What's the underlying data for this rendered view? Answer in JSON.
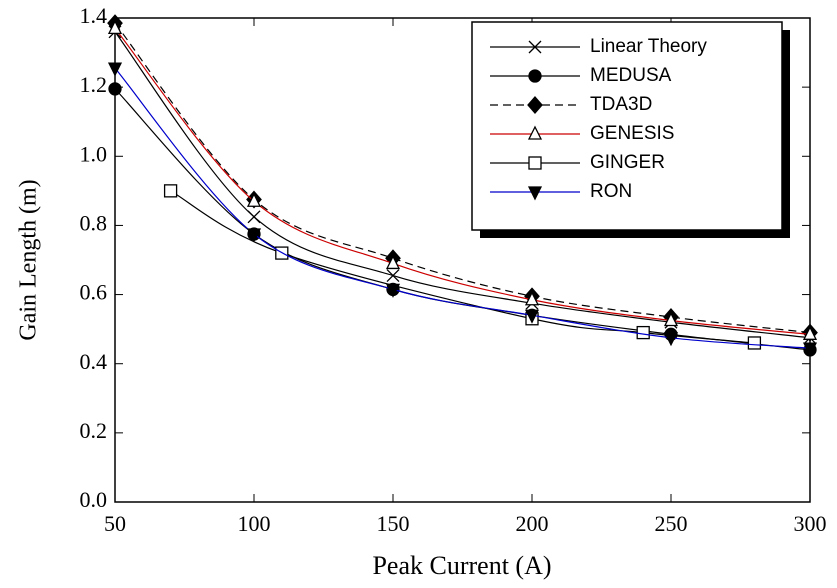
{
  "chart_data": {
    "type": "line",
    "xlabel": "Peak Current (A)",
    "ylabel": "Gain Length (m)",
    "xlim": [
      50,
      300
    ],
    "xticks": [
      50,
      100,
      150,
      200,
      250,
      300
    ],
    "ylim": [
      0,
      1.4
    ],
    "yticks": [
      {
        "value": 0,
        "label": "0.0"
      },
      0.2,
      0.4,
      0.6,
      0.8,
      {
        "value": 1,
        "label": "1.0"
      },
      1.2,
      1.4
    ],
    "series": [
      {
        "name": "Linear Theory",
        "color": "#000000",
        "marker": "x",
        "x": [
          50,
          100,
          150,
          200,
          250,
          300
        ],
        "values": [
          1.36,
          0.825,
          0.655,
          0.575,
          0.52,
          0.475
        ]
      },
      {
        "name": "MEDUSA",
        "color": "#000000",
        "marker": "circle",
        "x": [
          50,
          100,
          150,
          200,
          250,
          300
        ],
        "values": [
          1.195,
          0.775,
          0.615,
          0.54,
          0.485,
          0.44
        ]
      },
      {
        "name": "TDA3D",
        "color": "#000000",
        "marker": "diamond",
        "line_style": "dashed",
        "x": [
          50,
          100,
          150,
          200,
          250,
          300
        ],
        "values": [
          1.385,
          0.875,
          0.705,
          0.595,
          0.535,
          0.49
        ]
      },
      {
        "name": "GENESIS",
        "color": "#cc0000",
        "marker": "triangle",
        "x": [
          50,
          100,
          150,
          200,
          250,
          300
        ],
        "values": [
          1.37,
          0.87,
          0.69,
          0.585,
          0.525,
          0.485
        ]
      },
      {
        "name": "GINGER",
        "color": "#000000",
        "marker": "square",
        "x": [
          70,
          110,
          200,
          240,
          280
        ],
        "values": [
          0.9,
          0.72,
          0.53,
          0.49,
          0.46
        ]
      },
      {
        "name": "RON",
        "color": "#0000cc",
        "marker": "triangle-down",
        "x": [
          50,
          100,
          150,
          200,
          250,
          300
        ],
        "values": [
          1.255,
          0.775,
          0.615,
          0.54,
          0.475,
          0.445
        ]
      }
    ]
  }
}
